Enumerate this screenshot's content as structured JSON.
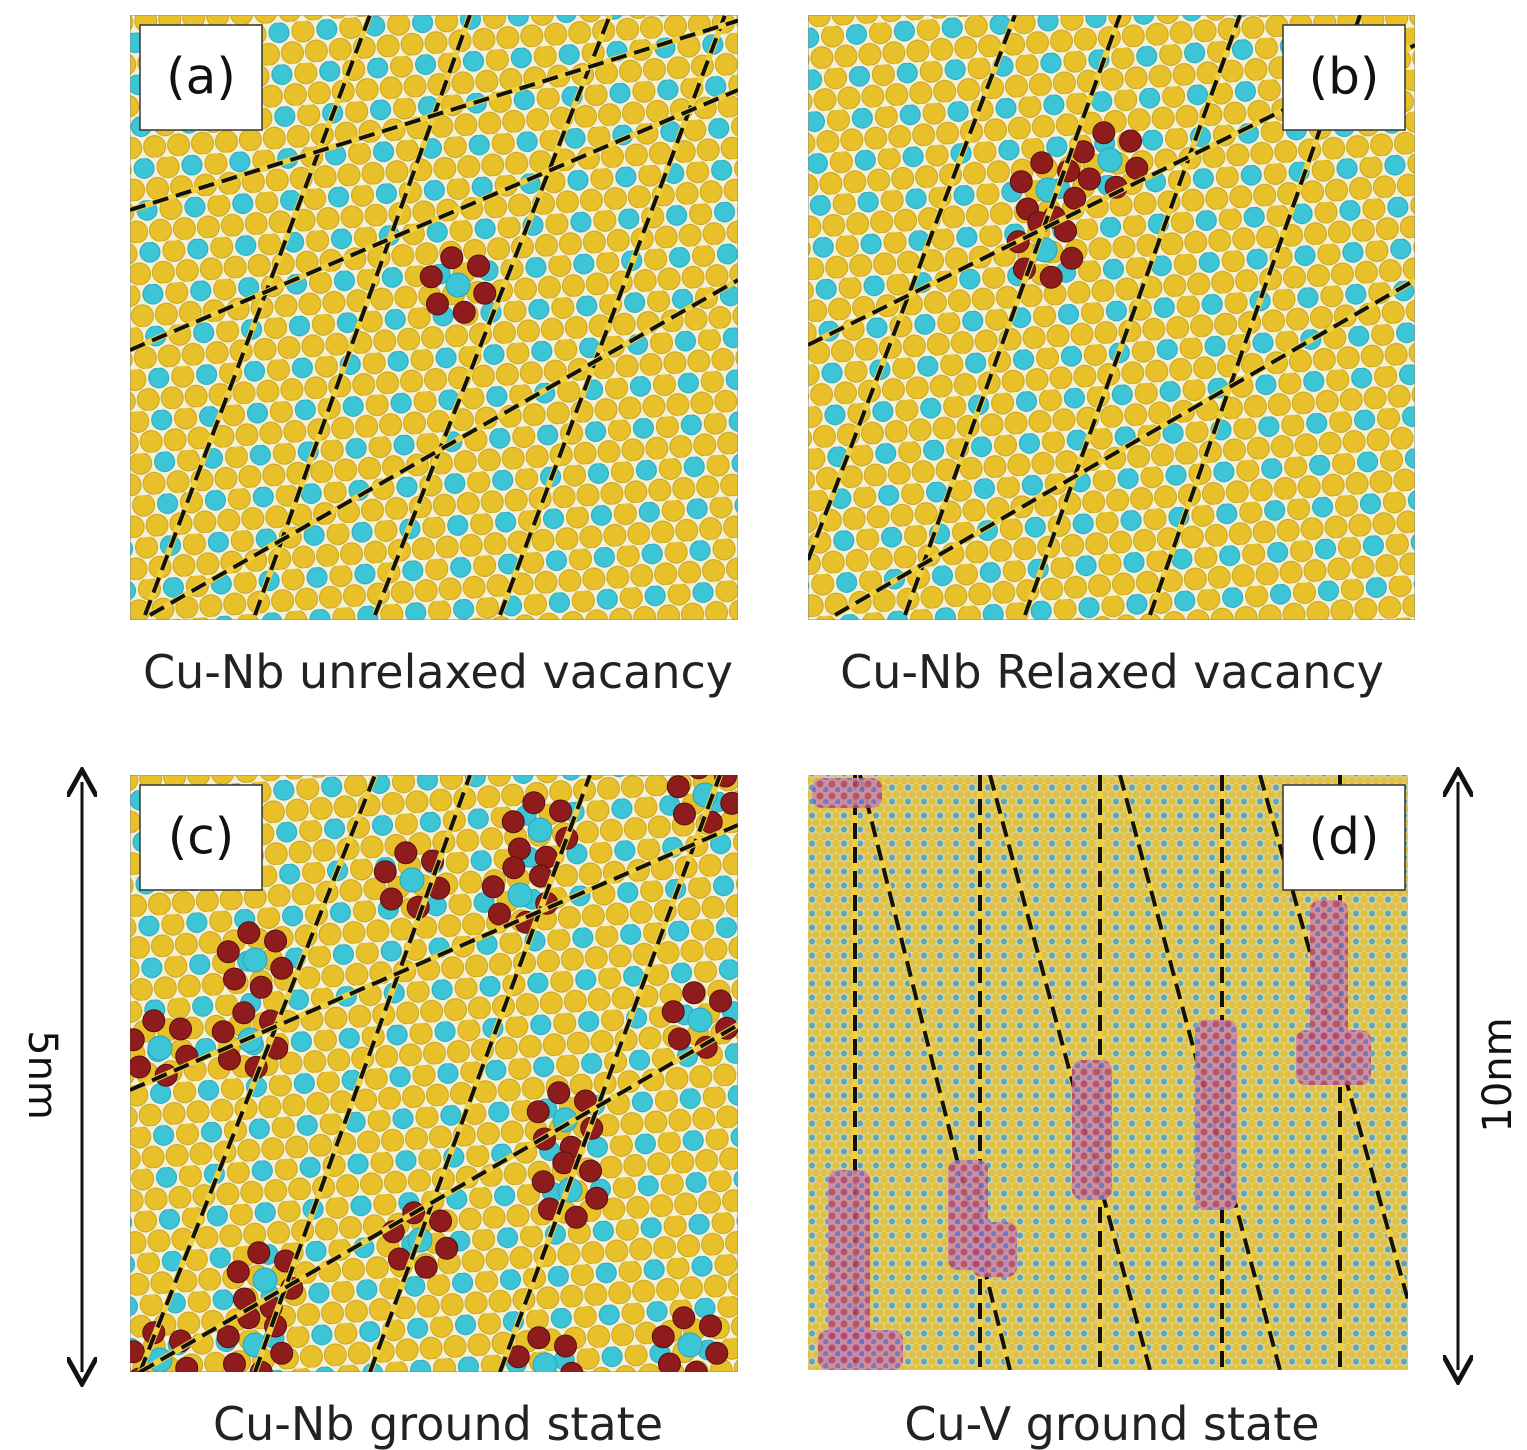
{
  "panels": [
    {
      "label": "(a)",
      "caption": "Cu-Nb unrelaxed vacancy"
    },
    {
      "label": "(b)",
      "caption": "Cu-Nb Relaxed vacancy"
    },
    {
      "label": "(c)",
      "caption": "Cu-Nb ground state"
    },
    {
      "label": "(d)",
      "caption": "Cu-V ground state"
    }
  ],
  "scale_bars": [
    {
      "label": "5nm"
    },
    {
      "label": "10nm"
    }
  ]
}
